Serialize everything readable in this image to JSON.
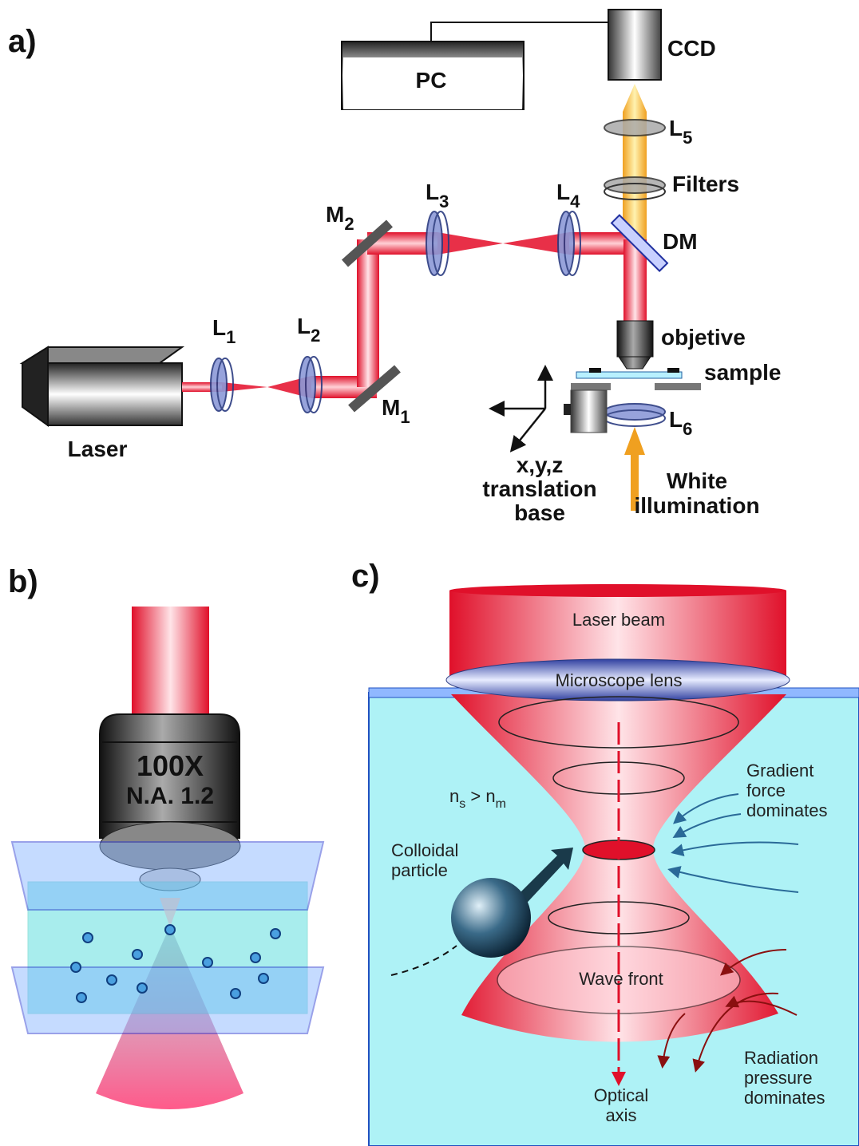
{
  "panel_a": {
    "label": "a)",
    "pc": "PC",
    "ccd": "CCD",
    "laser": "Laser",
    "l1": {
      "main": "L",
      "sub": "1"
    },
    "l2": {
      "main": "L",
      "sub": "2"
    },
    "l3": {
      "main": "L",
      "sub": "3"
    },
    "l4": {
      "main": "L",
      "sub": "4"
    },
    "l5": {
      "main": "L",
      "sub": "5"
    },
    "l6": {
      "main": "L",
      "sub": "6"
    },
    "m1": {
      "main": "M",
      "sub": "1"
    },
    "m2": {
      "main": "M",
      "sub": "2"
    },
    "filters": "Filters",
    "dm": "DM",
    "objective": "objetive",
    "sample": "sample",
    "translation_base": [
      "x,y,z",
      "translation",
      "base"
    ],
    "white_illumination": [
      "White",
      "illumination"
    ]
  },
  "panel_b": {
    "label": "b)",
    "magnification": "100X",
    "numerical_aperture": "N.A. 1.2"
  },
  "panel_c": {
    "label": "c)",
    "laser_beam": "Laser beam",
    "microscope_lens": "Microscope lens",
    "index_relation": {
      "n1": "n",
      "s1": "s",
      "mid": " > n",
      "s2": "m"
    },
    "colloidal_particle": [
      "Colloidal",
      "particle"
    ],
    "gradient_force": [
      "Gradient",
      "force",
      "dominates"
    ],
    "wave_front": "Wave front",
    "radiation_pressure": [
      "Radiation",
      "pressure",
      "dominates"
    ],
    "optical_axis": [
      "Optical",
      "axis"
    ]
  }
}
